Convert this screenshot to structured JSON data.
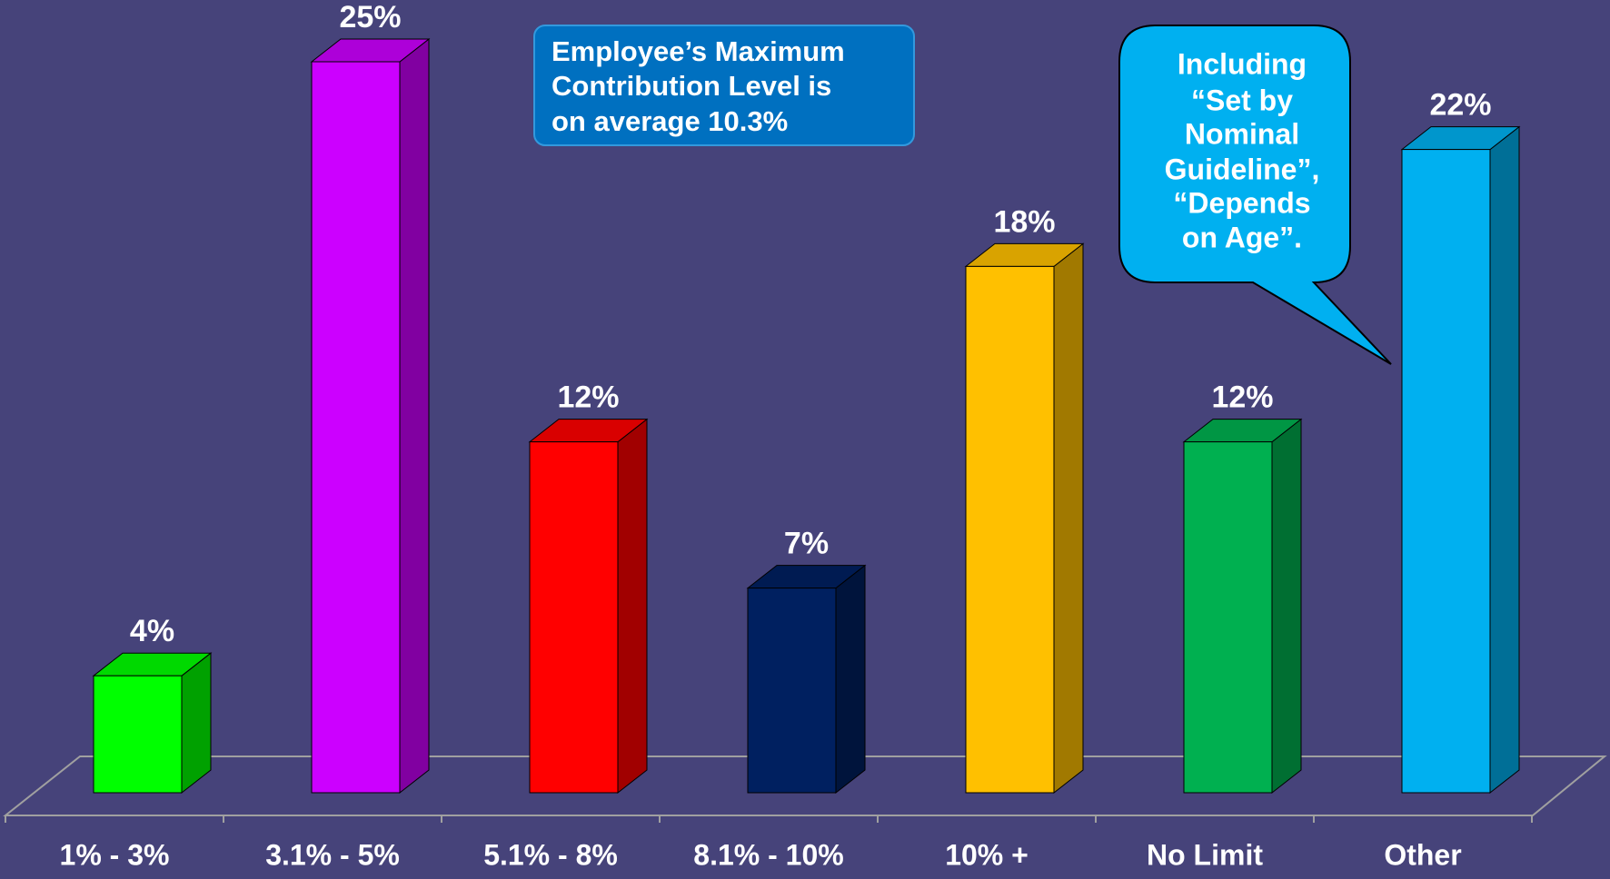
{
  "chart_data": {
    "type": "bar",
    "categories": [
      "1% - 3%",
      "3.1% - 5%",
      "5.1% - 8%",
      "8.1% - 10%",
      "10% +",
      "No Limit",
      "Other"
    ],
    "values": [
      4,
      25,
      12,
      7,
      18,
      12,
      22
    ],
    "value_labels": [
      "4%",
      "25%",
      "12%",
      "7%",
      "18%",
      "12%",
      "22%"
    ],
    "colors": [
      "#00ff00",
      "#cc00ff",
      "#ff0000",
      "#002060",
      "#ffc000",
      "#00b050",
      "#00b0f0"
    ],
    "annotations": [
      {
        "lines": [
          "Employee’s Maximum",
          "Contribution Level is",
          "on average 10.3%"
        ]
      },
      {
        "lines": [
          "Including",
          "“Set by",
          "Nominal",
          "Guideline”,",
          "“Depends",
          "on Age”."
        ]
      }
    ]
  }
}
